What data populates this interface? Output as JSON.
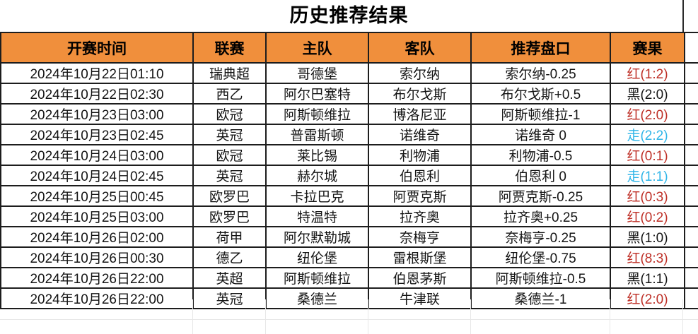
{
  "title": "历史推荐结果",
  "colors": {
    "header_bg": "#F08F3C",
    "grid": "#1D1D1D",
    "result_red": "#BE2F26",
    "result_black": "#141414",
    "result_draw": "#2FB5E8"
  },
  "table": {
    "headers": [
      "开赛时间",
      "联赛",
      "主队",
      "客队",
      "推荐盘口",
      "赛果"
    ],
    "rows": [
      {
        "time": "2024年10月22日01:10",
        "league": "瑞典超",
        "home": "哥德堡",
        "away": "索尔纳",
        "handicap": "索尔纳-0.25",
        "result": "红(1:2)",
        "result_type": "red"
      },
      {
        "time": "2024年10月22日02:30",
        "league": "西乙",
        "home": "阿尔巴塞特",
        "away": "布尔戈斯",
        "handicap": "布尔戈斯+0.5",
        "result": "黑(2:0)",
        "result_type": "black"
      },
      {
        "time": "2024年10月23日03:00",
        "league": "欧冠",
        "home": "阿斯顿维拉",
        "away": "博洛尼亚",
        "handicap": "阿斯顿维拉-1",
        "result": "红(2:0)",
        "result_type": "red"
      },
      {
        "time": "2024年10月23日02:45",
        "league": "英冠",
        "home": "普雷斯顿",
        "away": "诺维奇",
        "handicap": "诺维奇 0",
        "result": "走(2:2)",
        "result_type": "draw"
      },
      {
        "time": "2024年10月24日03:00",
        "league": "欧冠",
        "home": "莱比锡",
        "away": "利物浦",
        "handicap": "利物浦-0.5",
        "result": "红(0:1)",
        "result_type": "red"
      },
      {
        "time": "2024年10月24日02:45",
        "league": "英冠",
        "home": "赫尔城",
        "away": "伯恩利",
        "handicap": "伯恩利 0",
        "result": "走(1:1)",
        "result_type": "draw"
      },
      {
        "time": "2024年10月25日00:45",
        "league": "欧罗巴",
        "home": "卡拉巴克",
        "away": "阿贾克斯",
        "handicap": "阿贾克斯-0.25",
        "result": "红(0:3)",
        "result_type": "red"
      },
      {
        "time": "2024年10月25日03:00",
        "league": "欧罗巴",
        "home": "特温特",
        "away": "拉齐奥",
        "handicap": "拉齐奥+0.25",
        "result": "红(0:2)",
        "result_type": "red"
      },
      {
        "time": "2024年10月26日02:00",
        "league": "荷甲",
        "home": "阿尔默勒城",
        "away": "奈梅亨",
        "handicap": "奈梅亨-0.25",
        "result": "黑(1:0)",
        "result_type": "black"
      },
      {
        "time": "2024年10月26日00:30",
        "league": "德乙",
        "home": "纽伦堡",
        "away": "雷根斯堡",
        "handicap": "纽伦堡-0.75",
        "result": "红(8:3)",
        "result_type": "red"
      },
      {
        "time": "2024年10月26日22:00",
        "league": "英超",
        "home": "阿斯顿维拉",
        "away": "伯恩茅斯",
        "handicap": "阿斯顿维拉-0.5",
        "result": "黑(1:1)",
        "result_type": "black"
      },
      {
        "time": "2024年10月26日22:00",
        "league": "英冠",
        "home": "桑德兰",
        "away": "牛津联",
        "handicap": "桑德兰-1",
        "result": "红(2:0)",
        "result_type": "red"
      }
    ]
  }
}
